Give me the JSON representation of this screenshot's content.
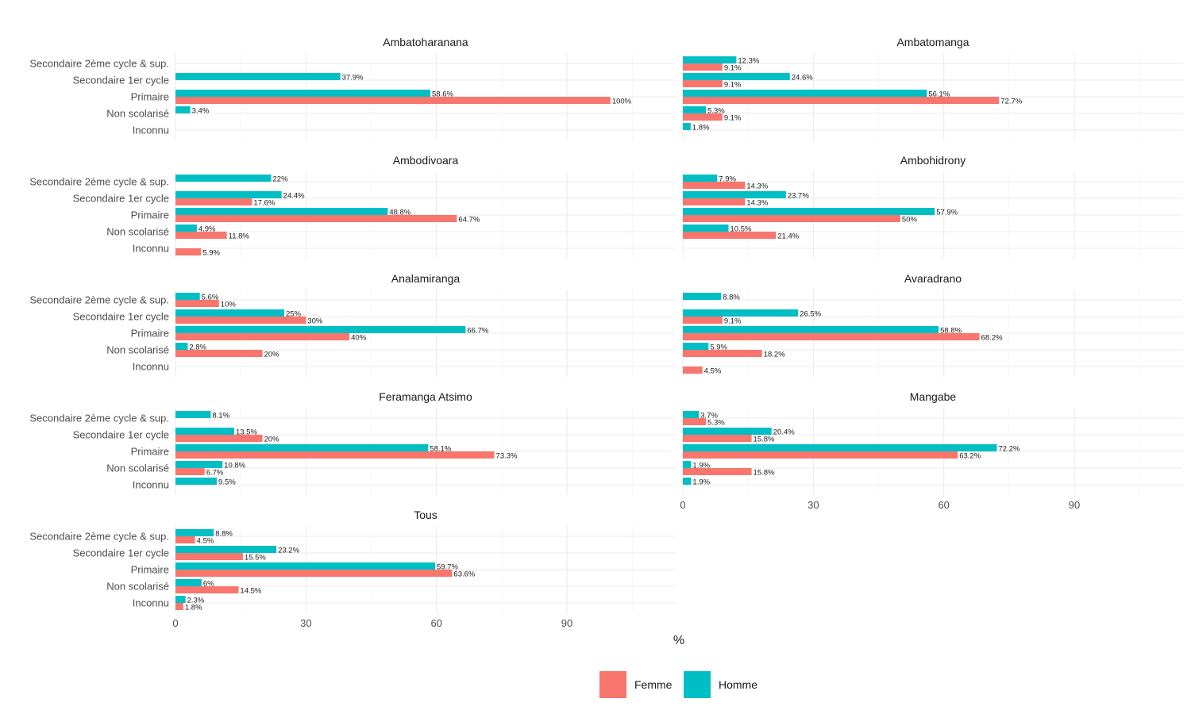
{
  "chart_data": {
    "type": "bar",
    "orientation": "horizontal",
    "faceted": true,
    "xlabel": "%",
    "ylabel": "",
    "xlim": [
      0,
      115
    ],
    "xticks": [
      0,
      30,
      60,
      90
    ],
    "grid": true,
    "legend": {
      "position": "bottom",
      "entries": [
        {
          "name": "Femme",
          "color": "#F8766D"
        },
        {
          "name": "Homme",
          "color": "#00BFC4"
        }
      ]
    },
    "categories": [
      "Secondaire 2ème cycle & sup.",
      "Secondaire 1er cycle",
      "Primaire",
      "Non scolarisé",
      "Inconnu"
    ],
    "panels": [
      {
        "title": "Ambatoharanana",
        "series": [
          {
            "name": "Homme",
            "values": [
              null,
              37.9,
              58.6,
              3.4,
              null
            ],
            "labels": [
              "",
              "37.9%",
              "58.6%",
              "3.4%",
              ""
            ]
          },
          {
            "name": "Femme",
            "values": [
              null,
              null,
              100,
              null,
              null
            ],
            "labels": [
              "",
              "",
              "100%",
              "",
              ""
            ]
          }
        ]
      },
      {
        "title": "Ambatomanga",
        "series": [
          {
            "name": "Homme",
            "values": [
              12.3,
              24.6,
              56.1,
              5.3,
              1.8
            ],
            "labels": [
              "12.3%",
              "24.6%",
              "56.1%",
              "5.3%",
              "1.8%"
            ]
          },
          {
            "name": "Femme",
            "values": [
              9.1,
              9.1,
              72.7,
              9.1,
              null
            ],
            "labels": [
              "9.1%",
              "9.1%",
              "72.7%",
              "9.1%",
              ""
            ]
          }
        ]
      },
      {
        "title": "Ambodivoara",
        "series": [
          {
            "name": "Homme",
            "values": [
              22,
              24.4,
              48.8,
              4.9,
              null
            ],
            "labels": [
              "22%",
              "24.4%",
              "48.8%",
              "4.9%",
              ""
            ]
          },
          {
            "name": "Femme",
            "values": [
              null,
              17.6,
              64.7,
              11.8,
              5.9
            ],
            "labels": [
              "",
              "17.6%",
              "64.7%",
              "11.8%",
              "5.9%"
            ]
          }
        ]
      },
      {
        "title": "Ambohidrony",
        "series": [
          {
            "name": "Homme",
            "values": [
              7.9,
              23.7,
              57.9,
              10.5,
              null
            ],
            "labels": [
              "7.9%",
              "23.7%",
              "57.9%",
              "10.5%",
              ""
            ]
          },
          {
            "name": "Femme",
            "values": [
              14.3,
              14.3,
              50,
              21.4,
              null
            ],
            "labels": [
              "14.3%",
              "14.3%",
              "50%",
              "21.4%",
              ""
            ]
          }
        ]
      },
      {
        "title": "Analamiranga",
        "series": [
          {
            "name": "Homme",
            "values": [
              5.6,
              25,
              66.7,
              2.8,
              null
            ],
            "labels": [
              "5.6%",
              "25%",
              "66.7%",
              "2.8%",
              ""
            ]
          },
          {
            "name": "Femme",
            "values": [
              10,
              30,
              40,
              20,
              null
            ],
            "labels": [
              "10%",
              "30%",
              "40%",
              "20%",
              ""
            ]
          }
        ]
      },
      {
        "title": "Avaradrano",
        "series": [
          {
            "name": "Homme",
            "values": [
              8.8,
              26.5,
              58.8,
              5.9,
              null
            ],
            "labels": [
              "8.8%",
              "26.5%",
              "58.8%",
              "5.9%",
              ""
            ]
          },
          {
            "name": "Femme",
            "values": [
              null,
              9.1,
              68.2,
              18.2,
              4.5
            ],
            "labels": [
              "",
              "9.1%",
              "68.2%",
              "18.2%",
              "4.5%"
            ]
          }
        ]
      },
      {
        "title": "Feramanga Atsimo",
        "series": [
          {
            "name": "Homme",
            "values": [
              8.1,
              13.5,
              58.1,
              10.8,
              9.5
            ],
            "labels": [
              "8.1%",
              "13.5%",
              "58.1%",
              "10.8%",
              "9.5%"
            ]
          },
          {
            "name": "Femme",
            "values": [
              null,
              20,
              73.3,
              6.7,
              null
            ],
            "labels": [
              "",
              "20%",
              "73.3%",
              "6.7%",
              ""
            ]
          }
        ]
      },
      {
        "title": "Mangabe",
        "series": [
          {
            "name": "Homme",
            "values": [
              3.7,
              20.4,
              72.2,
              1.9,
              1.9
            ],
            "labels": [
              "3.7%",
              "20.4%",
              "72.2%",
              "1.9%",
              "1.9%"
            ]
          },
          {
            "name": "Femme",
            "values": [
              5.3,
              15.8,
              63.2,
              15.8,
              null
            ],
            "labels": [
              "5.3%",
              "15.8%",
              "63.2%",
              "15.8%",
              ""
            ]
          }
        ]
      },
      {
        "title": "Tous",
        "series": [
          {
            "name": "Homme",
            "values": [
              8.8,
              23.2,
              59.7,
              6,
              2.3
            ],
            "labels": [
              "8.8%",
              "23.2%",
              "59.7%",
              "6%",
              "2.3%"
            ]
          },
          {
            "name": "Femme",
            "values": [
              4.5,
              15.5,
              63.6,
              14.5,
              1.8
            ],
            "labels": [
              "4.5%",
              "15.5%",
              "63.6%",
              "14.5%",
              "1.8%"
            ]
          }
        ]
      }
    ]
  }
}
